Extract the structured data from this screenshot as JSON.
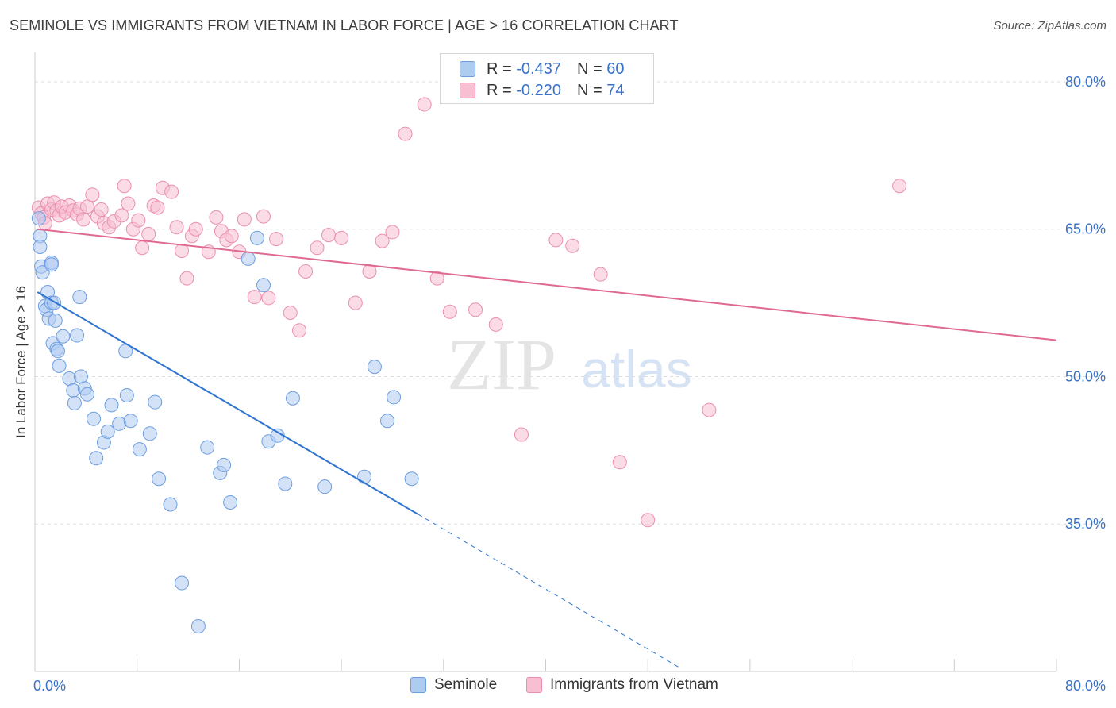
{
  "title": "SEMINOLE VS IMMIGRANTS FROM VIETNAM IN LABOR FORCE | AGE > 16 CORRELATION CHART",
  "source": "Source: ZipAtlas.com",
  "watermark": {
    "zip": "ZIP",
    "atlas": "atlas"
  },
  "legend_top": {
    "rows": [
      {
        "r_label": "R = ",
        "r_value": "-0.437",
        "n_label": "N = ",
        "n_value": "60"
      },
      {
        "r_label": "R = ",
        "r_value": "-0.220",
        "n_label": "N = ",
        "n_value": "74"
      }
    ]
  },
  "legend_bottom": [
    {
      "label": "Seminole"
    },
    {
      "label": "Immigrants from Vietnam"
    }
  ],
  "colors": {
    "seminole_fill": "#aecbf0",
    "seminole_stroke": "#6d9ee0",
    "seminole_line": "#2e74d0",
    "vietnam_fill": "#f7bfd1",
    "vietnam_stroke": "#eb8fae",
    "vietnam_line": "#e0698f",
    "tick_text": "#3a72c8",
    "grid": "#dddddd"
  },
  "chart_data": {
    "type": "scatter",
    "title": "SEMINOLE VS IMMIGRANTS FROM VIETNAM IN LABOR FORCE | AGE > 16 CORRELATION CHART",
    "xlabel": "",
    "ylabel": "In Labor Force | Age > 16",
    "xlim": [
      0,
      80
    ],
    "ylim": [
      20,
      82.5
    ],
    "x_tick_labels": [
      "0.0%",
      "80.0%"
    ],
    "y_ticks": [
      35,
      50,
      65,
      80
    ],
    "y_tick_labels": [
      "35.0%",
      "50.0%",
      "65.0%",
      "80.0%"
    ],
    "grid": true,
    "series": [
      {
        "name": "Seminole",
        "R": -0.437,
        "N": 60,
        "trend": {
          "x0": 0.2,
          "y0": 58.6,
          "x1": 30.0,
          "y1": 36.0,
          "dash_to_x": 50.6,
          "dash_to_y": 20.3
        },
        "points": [
          [
            0.3,
            66.1
          ],
          [
            0.4,
            64.3
          ],
          [
            0.4,
            63.2
          ],
          [
            0.5,
            61.2
          ],
          [
            0.6,
            60.6
          ],
          [
            0.8,
            57.2
          ],
          [
            0.9,
            56.8
          ],
          [
            1.0,
            58.6
          ],
          [
            1.1,
            55.9
          ],
          [
            1.3,
            57.5
          ],
          [
            1.3,
            61.6
          ],
          [
            1.3,
            61.4
          ],
          [
            1.4,
            53.4
          ],
          [
            1.5,
            57.5
          ],
          [
            1.6,
            55.7
          ],
          [
            1.7,
            52.8
          ],
          [
            1.8,
            52.6
          ],
          [
            1.9,
            51.1
          ],
          [
            2.2,
            54.1
          ],
          [
            2.7,
            49.8
          ],
          [
            3.0,
            48.6
          ],
          [
            3.1,
            47.3
          ],
          [
            3.3,
            54.2
          ],
          [
            3.5,
            58.1
          ],
          [
            3.6,
            50.0
          ],
          [
            3.9,
            48.8
          ],
          [
            4.1,
            48.2
          ],
          [
            4.6,
            45.7
          ],
          [
            4.8,
            41.7
          ],
          [
            5.4,
            43.3
          ],
          [
            5.7,
            44.4
          ],
          [
            6.0,
            47.1
          ],
          [
            6.6,
            45.2
          ],
          [
            7.1,
            52.6
          ],
          [
            7.2,
            48.1
          ],
          [
            7.5,
            45.5
          ],
          [
            8.2,
            42.6
          ],
          [
            9.0,
            44.2
          ],
          [
            9.4,
            47.4
          ],
          [
            9.7,
            39.6
          ],
          [
            10.6,
            37.0
          ],
          [
            11.5,
            29.0
          ],
          [
            12.8,
            24.6
          ],
          [
            13.5,
            42.8
          ],
          [
            14.5,
            40.2
          ],
          [
            14.8,
            41.0
          ],
          [
            15.3,
            37.2
          ],
          [
            16.7,
            62.0
          ],
          [
            17.4,
            64.1
          ],
          [
            17.9,
            59.3
          ],
          [
            18.3,
            43.4
          ],
          [
            19.0,
            44.0
          ],
          [
            19.6,
            39.1
          ],
          [
            20.2,
            47.8
          ],
          [
            22.7,
            38.8
          ],
          [
            25.8,
            39.8
          ],
          [
            26.6,
            51.0
          ],
          [
            27.6,
            45.5
          ],
          [
            28.1,
            47.9
          ],
          [
            29.5,
            39.6
          ]
        ]
      },
      {
        "name": "Immigrants from Vietnam",
        "R": -0.22,
        "N": 74,
        "trend": {
          "x0": 0.2,
          "y0": 65.0,
          "x1": 80.0,
          "y1": 53.7
        },
        "points": [
          [
            0.3,
            67.2
          ],
          [
            0.5,
            66.6
          ],
          [
            0.7,
            66.2
          ],
          [
            0.8,
            65.6
          ],
          [
            1.0,
            67.6
          ],
          [
            1.3,
            67.0
          ],
          [
            1.5,
            67.7
          ],
          [
            1.7,
            66.9
          ],
          [
            1.9,
            66.4
          ],
          [
            2.1,
            67.3
          ],
          [
            2.4,
            66.7
          ],
          [
            2.7,
            67.4
          ],
          [
            3.0,
            66.9
          ],
          [
            3.3,
            66.5
          ],
          [
            3.5,
            67.1
          ],
          [
            3.8,
            66.0
          ],
          [
            4.1,
            67.3
          ],
          [
            4.5,
            68.5
          ],
          [
            4.9,
            66.3
          ],
          [
            5.2,
            67.0
          ],
          [
            5.4,
            65.6
          ],
          [
            5.8,
            65.2
          ],
          [
            6.2,
            65.8
          ],
          [
            6.8,
            66.4
          ],
          [
            7.0,
            69.4
          ],
          [
            7.3,
            67.6
          ],
          [
            7.7,
            65.0
          ],
          [
            8.1,
            65.9
          ],
          [
            8.4,
            63.1
          ],
          [
            8.9,
            64.5
          ],
          [
            9.3,
            67.4
          ],
          [
            9.6,
            67.2
          ],
          [
            10.0,
            69.2
          ],
          [
            10.7,
            68.8
          ],
          [
            11.1,
            65.2
          ],
          [
            11.5,
            62.8
          ],
          [
            11.9,
            60.0
          ],
          [
            12.3,
            64.3
          ],
          [
            12.6,
            65.0
          ],
          [
            13.6,
            62.7
          ],
          [
            14.2,
            66.2
          ],
          [
            14.6,
            64.8
          ],
          [
            15.0,
            63.9
          ],
          [
            15.4,
            64.3
          ],
          [
            16.0,
            62.7
          ],
          [
            16.4,
            66.0
          ],
          [
            17.2,
            58.1
          ],
          [
            17.9,
            66.3
          ],
          [
            18.3,
            58.0
          ],
          [
            18.9,
            64.0
          ],
          [
            20.0,
            56.5
          ],
          [
            20.7,
            54.7
          ],
          [
            21.2,
            60.7
          ],
          [
            22.1,
            63.1
          ],
          [
            23.0,
            64.4
          ],
          [
            24.0,
            64.1
          ],
          [
            25.1,
            57.5
          ],
          [
            26.2,
            60.7
          ],
          [
            27.2,
            63.8
          ],
          [
            28.0,
            64.7
          ],
          [
            29.0,
            74.7
          ],
          [
            30.5,
            77.7
          ],
          [
            31.5,
            60.0
          ],
          [
            32.5,
            56.6
          ],
          [
            34.5,
            56.8
          ],
          [
            36.1,
            55.3
          ],
          [
            38.1,
            44.1
          ],
          [
            40.8,
            63.9
          ],
          [
            42.1,
            63.3
          ],
          [
            44.3,
            60.4
          ],
          [
            45.8,
            41.3
          ],
          [
            48.0,
            35.4
          ],
          [
            52.8,
            46.6
          ],
          [
            67.7,
            69.4
          ]
        ]
      }
    ]
  }
}
